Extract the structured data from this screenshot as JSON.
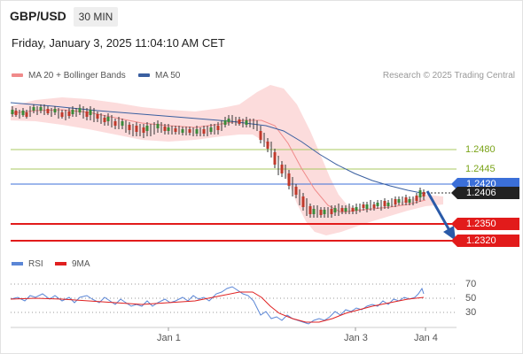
{
  "header": {
    "symbol": "GBP/USD",
    "timeframe": "30 MIN"
  },
  "datetime": "Friday, January 3, 2025 11:04:10 AM CET",
  "legend": {
    "items": [
      {
        "label": "MA 20 + Bollinger Bands",
        "color": "#f08a8a"
      },
      {
        "label": "MA 50",
        "color": "#3a5fa0"
      }
    ],
    "credit": "Research © 2025 Trading Central"
  },
  "levels": {
    "resistance": [
      "1.2480",
      "1.2445"
    ],
    "pivot": "1.2420",
    "current_price": "1.2406",
    "support": [
      "1.2350",
      "1.2320"
    ]
  },
  "rsi": {
    "legend": [
      {
        "label": "RSI",
        "color": "#5b86d6"
      },
      {
        "label": "9MA",
        "color": "#e02020"
      }
    ],
    "levels": [
      "70",
      "50",
      "30"
    ]
  },
  "x_axis": {
    "labels": [
      "Jan 1",
      "Jan 3",
      "Jan 4"
    ]
  },
  "colors": {
    "resistance": "#7aa318",
    "pivot": "#3b6fd8",
    "support": "#e21b1b",
    "price_tag": "#222222",
    "candle_up": "#3a8a3a",
    "candle_down": "#c0392b",
    "bollinger_fill": "#fbd6d6",
    "arrow": "#2a5aa8"
  }
}
